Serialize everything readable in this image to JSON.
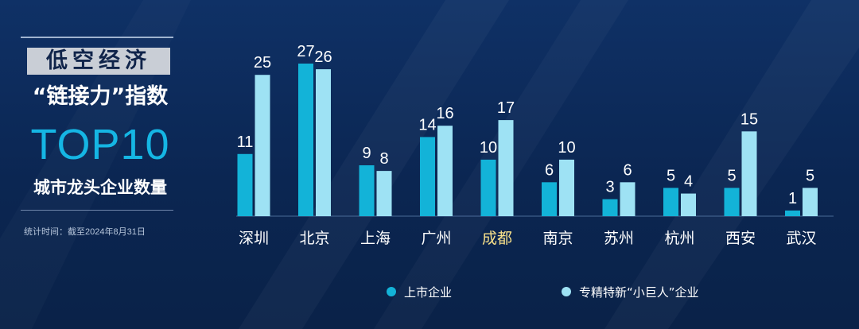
{
  "panel": {
    "title": "低空经济",
    "subtitle": "“链接力”指数",
    "rank_label": "TOP10",
    "metric_label": "城市龙头企业数量",
    "note": "统计时间：截至2024年8月31日"
  },
  "colors": {
    "listed": "#13b3d8",
    "giant": "#9ee2f4",
    "highlight_label": "#f7e08a",
    "label": "#ffffff"
  },
  "chart_data": {
    "type": "bar",
    "title": "",
    "xlabel": "",
    "ylabel": "",
    "ylim": [
      0,
      27
    ],
    "grid": false,
    "legend": "bottom",
    "highlight": "成都",
    "categories": [
      "深圳",
      "北京",
      "上海",
      "广州",
      "成都",
      "南京",
      "苏州",
      "杭州",
      "西安",
      "武汉"
    ],
    "series": [
      {
        "name": "上市企业",
        "values": [
          11,
          27,
          9,
          14,
          10,
          6,
          3,
          5,
          5,
          1
        ]
      },
      {
        "name": "专精特新“小巨人”企业",
        "values": [
          25,
          26,
          8,
          16,
          17,
          10,
          6,
          4,
          15,
          5
        ]
      }
    ]
  }
}
